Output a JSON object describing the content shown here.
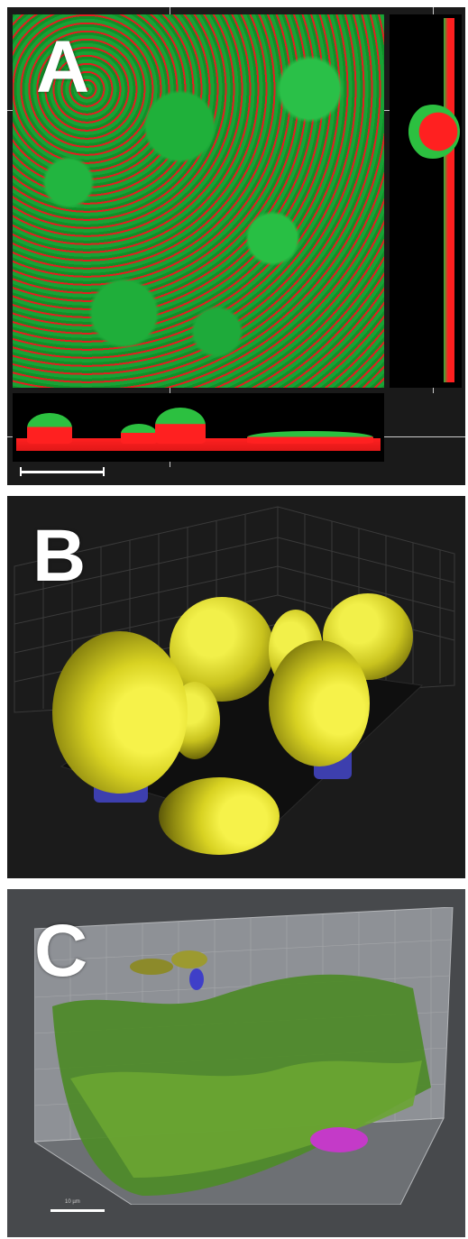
{
  "panels": [
    {
      "label": "A"
    },
    {
      "label": "B"
    },
    {
      "label": "C"
    }
  ],
  "colors": {
    "green_channel": "#22b540",
    "red_channel": "#ff2020",
    "yellow_surface": "#e6e22e",
    "blue_surface": "#3d3fae",
    "magenta_surface": "#d03ad0",
    "panel_c_background": "#47494c"
  },
  "panel_c": {
    "scale_label": "10 µm"
  }
}
